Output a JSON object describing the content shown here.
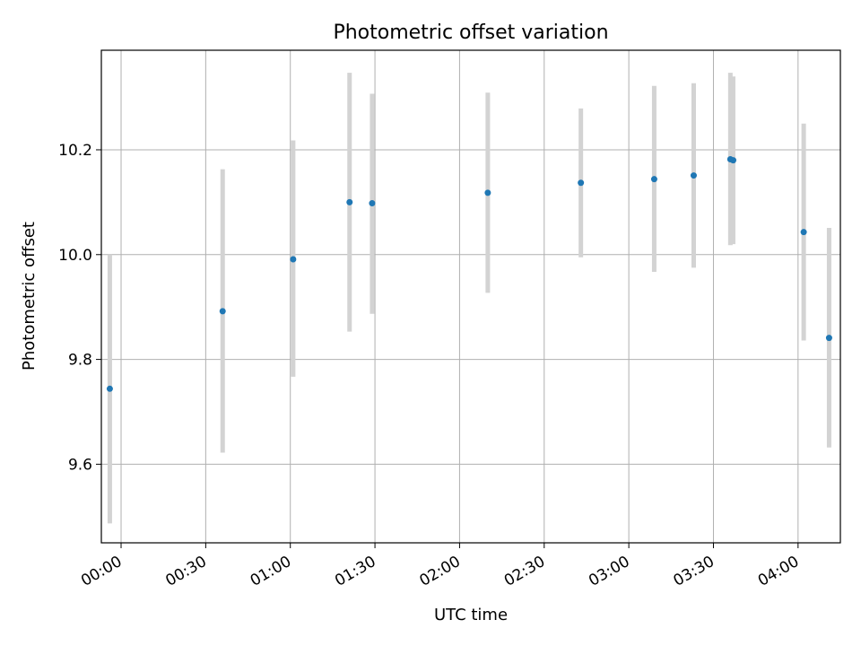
{
  "chart_data": {
    "type": "scatter",
    "title": "Photometric offset variation",
    "xlabel": "UTC time",
    "ylabel": "Photometric offset",
    "xlim": [
      "23:53",
      "04:15"
    ],
    "ylim": [
      9.45,
      10.39
    ],
    "x_ticks": [
      "00:00",
      "00:30",
      "01:00",
      "01:30",
      "02:00",
      "02:30",
      "03:00",
      "03:30",
      "04:00"
    ],
    "y_ticks": [
      9.6,
      9.8,
      10.0,
      10.2
    ],
    "y_tick_labels": [
      "9.6",
      "9.8",
      "10.0",
      "10.2"
    ],
    "grid": true,
    "error_bar_color": "#d3d3d3",
    "point_color": "#1f77b4",
    "points": [
      {
        "x": "23:56",
        "y": 9.744,
        "yerr_low": 9.487,
        "yerr_high": 10.0
      },
      {
        "x": "00:36",
        "y": 9.892,
        "yerr_low": 9.622,
        "yerr_high": 10.163
      },
      {
        "x": "01:01",
        "y": 9.991,
        "yerr_low": 9.767,
        "yerr_high": 10.218
      },
      {
        "x": "01:21",
        "y": 10.1,
        "yerr_low": 9.853,
        "yerr_high": 10.347
      },
      {
        "x": "01:29",
        "y": 10.098,
        "yerr_low": 9.887,
        "yerr_high": 10.307
      },
      {
        "x": "02:10",
        "y": 10.118,
        "yerr_low": 9.927,
        "yerr_high": 10.309
      },
      {
        "x": "02:43",
        "y": 10.137,
        "yerr_low": 9.995,
        "yerr_high": 10.279
      },
      {
        "x": "03:09",
        "y": 10.144,
        "yerr_low": 9.967,
        "yerr_high": 10.322
      },
      {
        "x": "03:23",
        "y": 10.151,
        "yerr_low": 9.975,
        "yerr_high": 10.327
      },
      {
        "x": "03:36",
        "y": 10.182,
        "yerr_low": 10.018,
        "yerr_high": 10.347
      },
      {
        "x": "03:37",
        "y": 10.18,
        "yerr_low": 10.02,
        "yerr_high": 10.34
      },
      {
        "x": "04:02",
        "y": 10.043,
        "yerr_low": 9.836,
        "yerr_high": 10.25
      },
      {
        "x": "04:11",
        "y": 9.841,
        "yerr_low": 9.632,
        "yerr_high": 10.051
      }
    ]
  }
}
